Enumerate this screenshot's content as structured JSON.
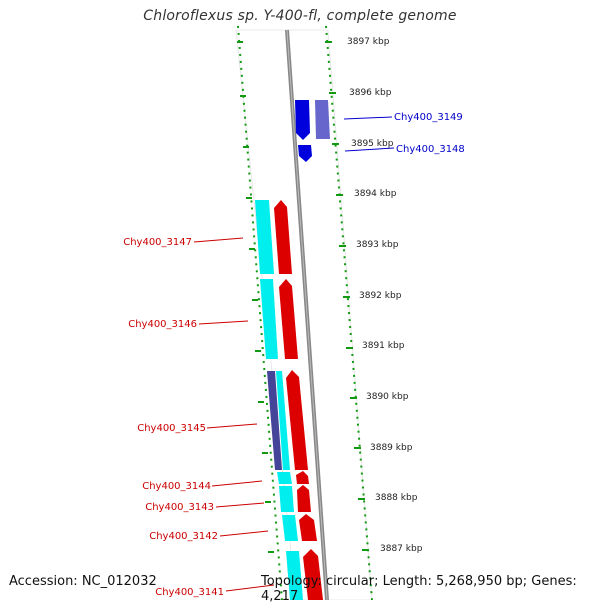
{
  "title": "Chloroflexus sp. Y-400-fl, complete genome",
  "footer": {
    "accession": "Accession: NC_012032",
    "topology": "Topology: circular; Length: 5,268,950 bp; Genes: 4,217"
  },
  "scale_labels": [
    "3897 kbp",
    "3896 kbp",
    "3895 kbp",
    "3894 kbp",
    "3893 kbp",
    "3892 kbp",
    "3891 kbp",
    "3890 kbp",
    "3889 kbp",
    "3888 kbp",
    "3887 kbp"
  ],
  "gene_labels": [
    "Chy400_3149",
    "Chy400_3148",
    "Chy400_3147",
    "Chy400_3146",
    "Chy400_3145",
    "Chy400_3144",
    "Chy400_3143",
    "Chy400_3142",
    "Chy400_3141"
  ],
  "colors": {
    "forward": "#0000dd",
    "reverse": "#dd0000",
    "cds_cyan": "#00eeee",
    "cds_slate": "#6666cc",
    "backbone": "#888888",
    "ticks": "#119911"
  }
}
